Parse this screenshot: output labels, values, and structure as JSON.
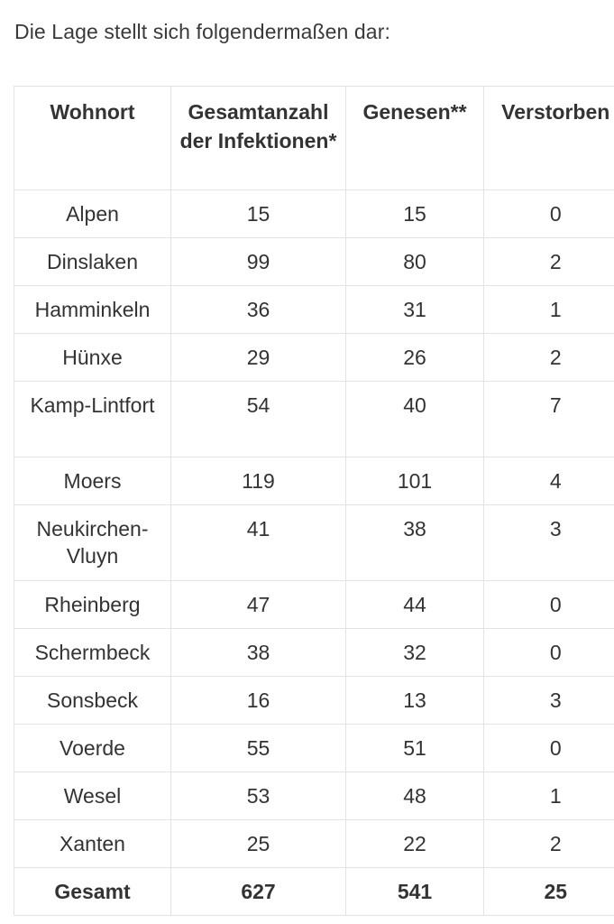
{
  "intro": "Die Lage stellt sich folgendermaßen dar:",
  "table": {
    "headers": {
      "wohnort": "Wohnort",
      "gesamt": "Gesamtanzahl der Infektionen*",
      "genesen": "Genesen**",
      "verstorben": "Verstorben"
    },
    "rows": [
      {
        "wohnort": "Alpen",
        "gesamt": "15",
        "genesen": "15",
        "verstorben": "0"
      },
      {
        "wohnort": "Dinslaken",
        "gesamt": "99",
        "genesen": "80",
        "verstorben": "2"
      },
      {
        "wohnort": "Hamminkeln",
        "gesamt": "36",
        "genesen": "31",
        "verstorben": "1"
      },
      {
        "wohnort": "Hünxe",
        "gesamt": "29",
        "genesen": "26",
        "verstorben": "2"
      },
      {
        "wohnort": "Kamp-Lintfort",
        "gesamt": "54",
        "genesen": "40",
        "verstorben": "7"
      },
      {
        "wohnort": "Moers",
        "gesamt": "119",
        "genesen": "101",
        "verstorben": "4"
      },
      {
        "wohnort": "Neukirchen-Vluyn",
        "gesamt": "41",
        "genesen": "38",
        "verstorben": "3"
      },
      {
        "wohnort": "Rheinberg",
        "gesamt": "47",
        "genesen": "44",
        "verstorben": "0"
      },
      {
        "wohnort": "Schermbeck",
        "gesamt": "38",
        "genesen": "32",
        "verstorben": "0"
      },
      {
        "wohnort": "Sonsbeck",
        "gesamt": "16",
        "genesen": "13",
        "verstorben": "3"
      },
      {
        "wohnort": "Voerde",
        "gesamt": "55",
        "genesen": "51",
        "verstorben": "0"
      },
      {
        "wohnort": "Wesel",
        "gesamt": "53",
        "genesen": "48",
        "verstorben": "1"
      },
      {
        "wohnort": "Xanten",
        "gesamt": "25",
        "genesen": "22",
        "verstorben": "2"
      }
    ],
    "total": {
      "wohnort": "Gesamt",
      "gesamt": "627",
      "genesen": "541",
      "verstorben": "25"
    }
  }
}
